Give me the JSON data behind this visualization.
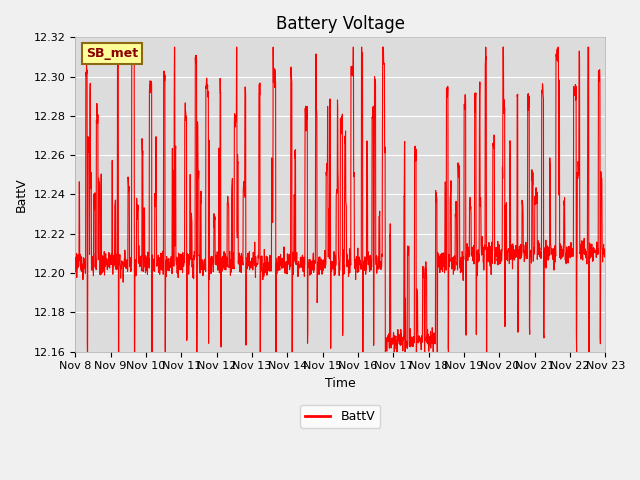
{
  "title": "Battery Voltage",
  "xlabel": "Time",
  "ylabel": "BattV",
  "ylim": [
    12.16,
    12.32
  ],
  "background_color": "#dcdcdc",
  "fig_background": "#f0f0f0",
  "line_color": "#ff0000",
  "line_width": 0.8,
  "legend_label": "BattV",
  "tag_label": "SB_met",
  "tag_bg": "#ffff99",
  "tag_border": "#8B6914",
  "x_tick_labels": [
    "Nov 8",
    "Nov 9",
    "Nov 10",
    "Nov 11",
    "Nov 12",
    "Nov 13",
    "Nov 14",
    "Nov 15",
    "Nov 16",
    "Nov 17",
    "Nov 18",
    "Nov 19",
    "Nov 20",
    "Nov 21",
    "Nov 22",
    "Nov 23"
  ],
  "title_fontsize": 12,
  "axis_label_fontsize": 9,
  "tick_fontsize": 8,
  "y_ticks": [
    12.16,
    12.18,
    12.2,
    12.22,
    12.24,
    12.26,
    12.28,
    12.3,
    12.32
  ]
}
